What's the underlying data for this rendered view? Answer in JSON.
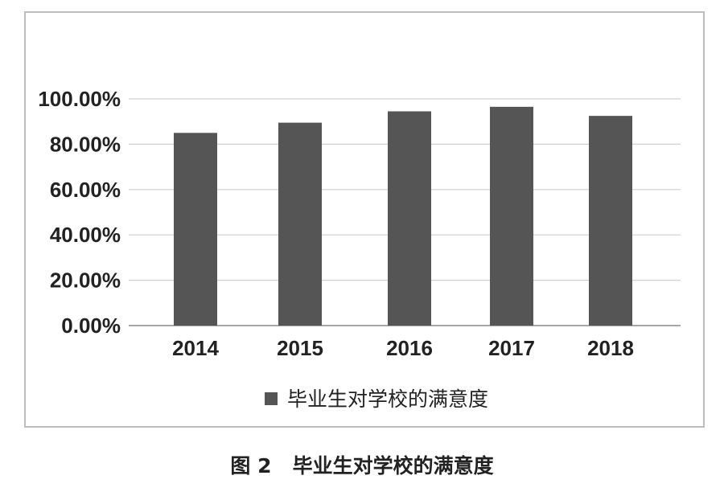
{
  "caption": {
    "figure_label": "图 2",
    "title": "毕业生对学校的满意度"
  },
  "chart_data": {
    "type": "bar",
    "categories": [
      "2014",
      "2015",
      "2016",
      "2017",
      "2018"
    ],
    "series": [
      {
        "name": "毕业生对学校的满意度",
        "values": [
          85,
          89.5,
          94.5,
          96.5,
          92.5
        ],
        "color": "#555555"
      }
    ],
    "y_ticks": [
      "0.00%",
      "20.00%",
      "40.00%",
      "60.00%",
      "80.00%",
      "100.00%"
    ],
    "ylim": [
      0,
      100
    ],
    "grid": true,
    "legend_position": "bottom"
  }
}
